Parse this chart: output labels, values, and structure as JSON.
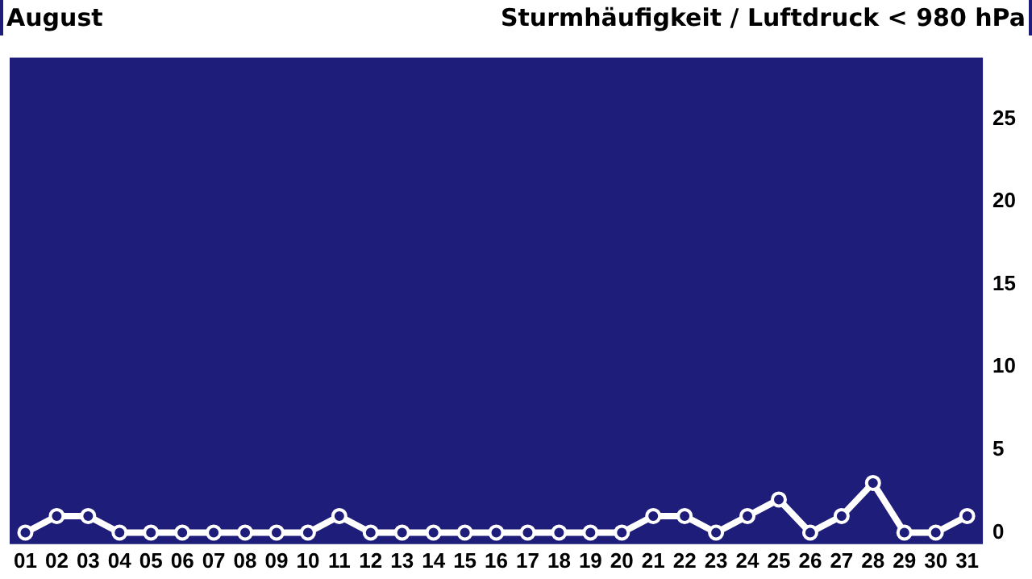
{
  "chart_data": {
    "type": "line",
    "title": "August",
    "subtitle": "Sturmhäufigkeit / Luftdruck < 980 hPa",
    "categories": [
      "01",
      "02",
      "03",
      "04",
      "05",
      "06",
      "07",
      "08",
      "09",
      "10",
      "11",
      "12",
      "13",
      "14",
      "15",
      "16",
      "17",
      "18",
      "19",
      "20",
      "21",
      "22",
      "23",
      "24",
      "25",
      "26",
      "27",
      "28",
      "29",
      "30",
      "31"
    ],
    "series": [
      {
        "color": "#ffffff",
        "values": [
          0,
          1,
          1,
          0,
          0,
          0,
          0,
          0,
          0,
          0,
          1,
          0,
          0,
          0,
          0,
          0,
          0,
          0,
          0,
          0,
          1,
          1,
          0,
          1,
          2,
          0,
          1,
          3,
          0,
          0,
          1
        ]
      }
    ],
    "ylim": [
      -0.7,
      28.7
    ],
    "yticks": [
      0,
      5,
      10,
      15,
      20,
      25
    ],
    "grid": false,
    "legend": false,
    "marker": "circle",
    "line_style": "solid"
  }
}
